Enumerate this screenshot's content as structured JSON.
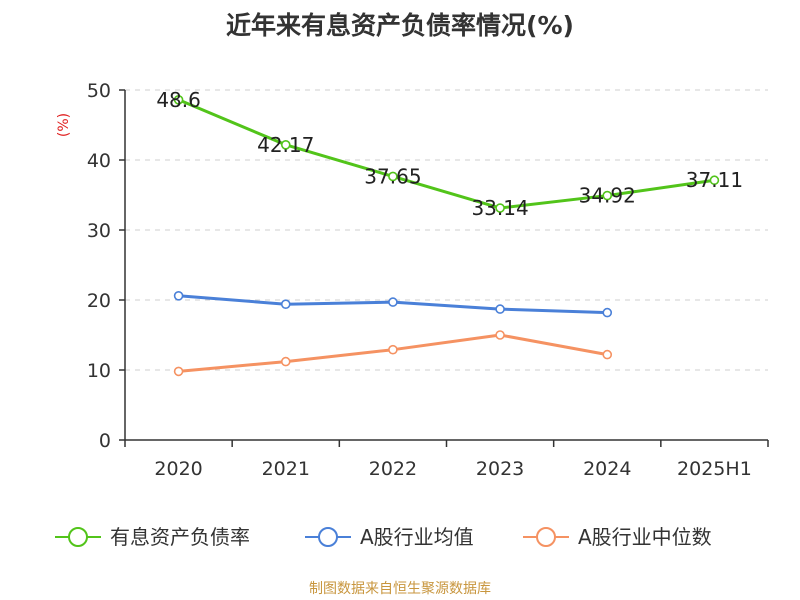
{
  "chart_data": {
    "type": "line",
    "title": "近年来有息资产负债率情况(%)",
    "ylabel": "(%)",
    "categories": [
      "2020",
      "2021",
      "2022",
      "2023",
      "2024",
      "2025H1"
    ],
    "ylim": [
      0,
      50
    ],
    "yticks": [
      0,
      10,
      20,
      30,
      40,
      50
    ],
    "grid": true,
    "legend_position": "bottom",
    "series": [
      {
        "name": "有息资产负债率",
        "color": "#52c41a",
        "values": [
          48.6,
          42.17,
          37.65,
          33.14,
          34.92,
          37.11
        ],
        "labels": [
          "48.6",
          "42.17",
          "37.65",
          "33.14",
          "34.92",
          "37.11"
        ],
        "show_labels": true
      },
      {
        "name": "A股行业均值",
        "color": "#4a80d8",
        "values": [
          20.6,
          19.4,
          19.7,
          18.7,
          18.2,
          null
        ],
        "show_labels": false
      },
      {
        "name": "A股行业中位数",
        "color": "#f59262",
        "values": [
          9.8,
          11.2,
          12.9,
          15.0,
          12.2,
          null
        ],
        "show_labels": false
      }
    ]
  },
  "footer": {
    "source": "制图数据来自恒生聚源数据库"
  }
}
